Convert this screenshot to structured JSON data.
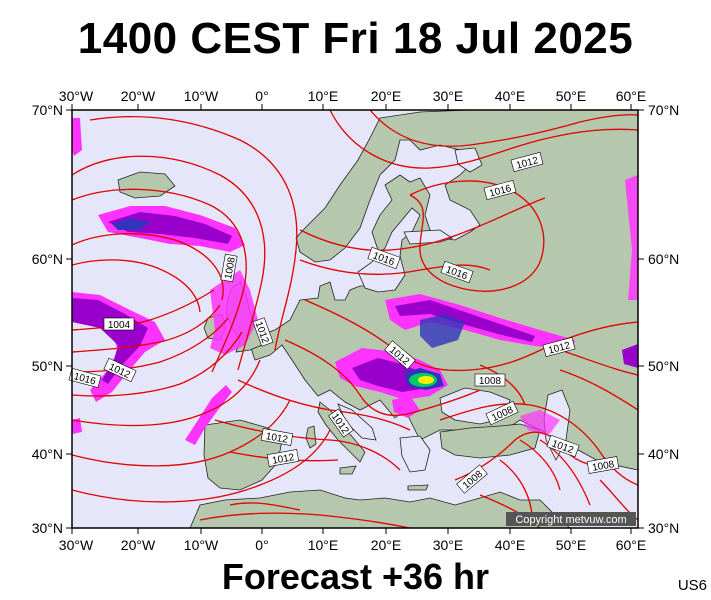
{
  "header": {
    "title": "1400 CEST Fri 18 Jul 2025"
  },
  "footer": {
    "subtitle": "Forecast +36 hr",
    "run_code": "US6"
  },
  "copyright": "Copyright metvuw.com",
  "axes": {
    "lon_labels": [
      "30°W",
      "20°W",
      "10°W",
      "0°",
      "10°E",
      "20°E",
      "30°E",
      "40°E",
      "50°E",
      "60°E"
    ],
    "lat_labels": [
      "70°N",
      "60°N",
      "50°N",
      "40°N",
      "30°N"
    ]
  },
  "isobar_labels": [
    "1012",
    "1016",
    "1016",
    "1016",
    "1008",
    "1012",
    "1004",
    "1012",
    "1016",
    "1012",
    "1012",
    "1008",
    "1008",
    "1012",
    "1012",
    "1008",
    "1012",
    "1012",
    "1008"
  ],
  "colors": {
    "ocean": "#e6e6fa",
    "land": "#b5c8ad",
    "isobar": "#e00000",
    "precip_light": "#ff33ff",
    "precip_mid": "#9900cc",
    "precip_heavy": "#3333bb"
  }
}
